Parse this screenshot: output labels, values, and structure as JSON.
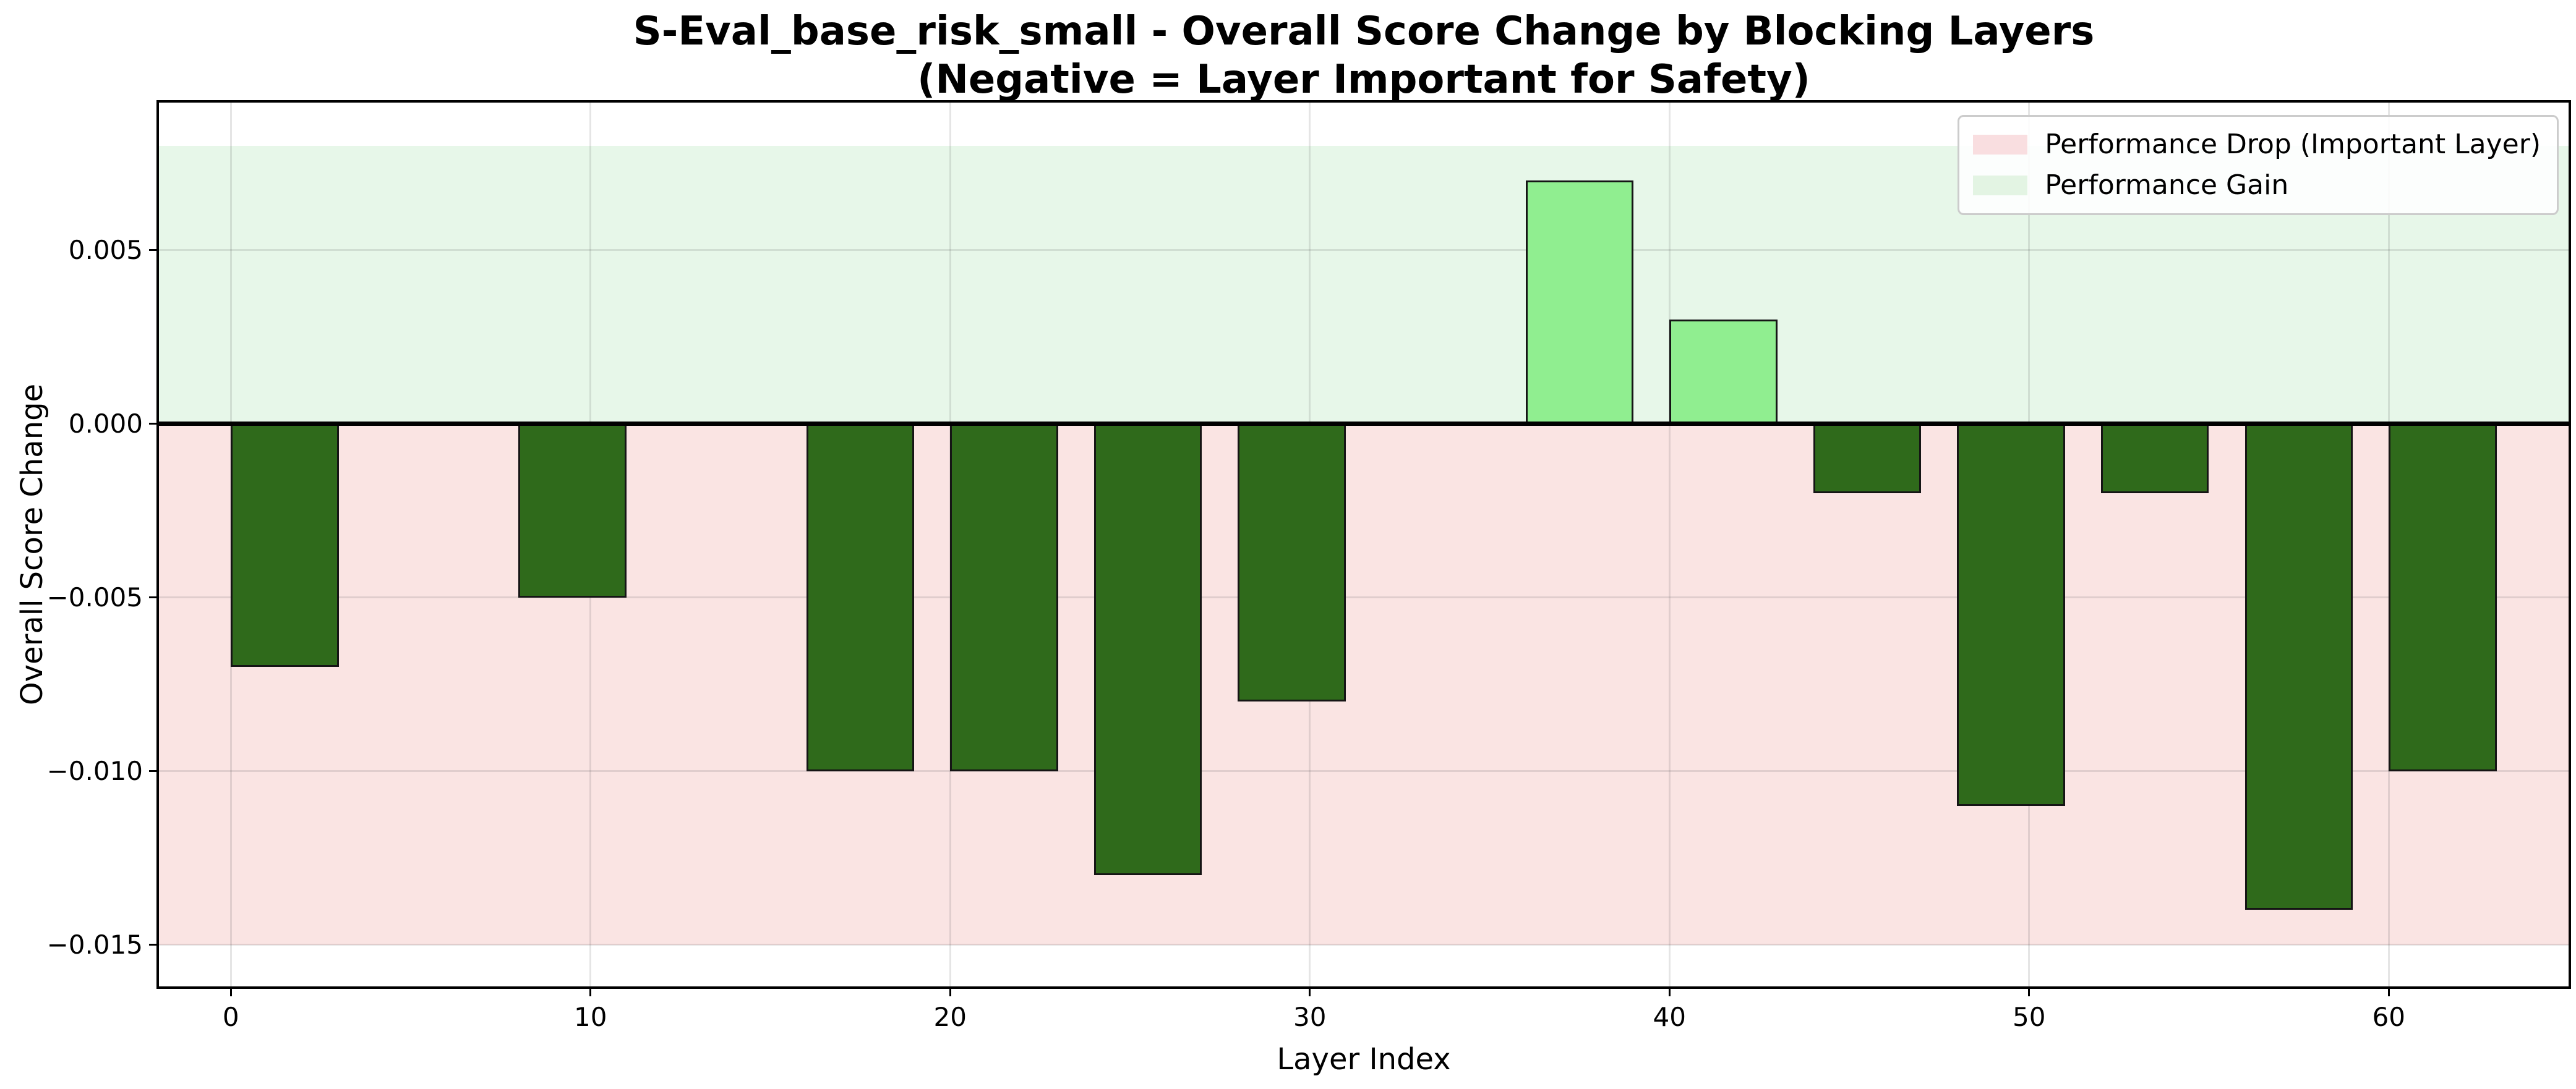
{
  "title": {
    "line1": "S-Eval_base_risk_small - Overall Score Change by Blocking Layers",
    "line2": "(Negative = Layer Important for Safety)"
  },
  "axes": {
    "xlabel": "Layer Index",
    "ylabel": "Overall Score Change"
  },
  "legend": {
    "entries": [
      {
        "label": "Performance Drop (Important Layer)",
        "swatch": "#f9dee0"
      },
      {
        "label": "Performance Gain",
        "swatch": "#e3f4e3"
      }
    ]
  },
  "chart_data": {
    "type": "bar",
    "title": "S-Eval_base_risk_small - Overall Score Change by Blocking Layers",
    "subtitle": "(Negative = Layer Important for Safety)",
    "xlabel": "Layer Index",
    "ylabel": "Overall Score Change",
    "xlim": [
      -2,
      65
    ],
    "ylim": [
      -0.0162,
      0.00925
    ],
    "x_ticks": [
      0,
      10,
      20,
      30,
      40,
      50,
      60
    ],
    "x_tick_labels": [
      "0",
      "10",
      "20",
      "30",
      "40",
      "50",
      "60"
    ],
    "y_ticks": [
      0.005,
      0.0,
      -0.005,
      -0.01,
      -0.015
    ],
    "y_tick_labels": [
      "0.005",
      "0.000",
      "−0.005",
      "−0.010",
      "−0.015"
    ],
    "grid": true,
    "legend_position": "upper right",
    "bar_width_units": 3,
    "categories": [
      "0-3",
      "8-11",
      "16-19",
      "20-23",
      "24-27",
      "28-31",
      "36-39",
      "40-43",
      "44-47",
      "48-51",
      "52-55",
      "56-59",
      "60-63"
    ],
    "values": [
      -0.007,
      -0.005,
      -0.01,
      -0.01,
      -0.013,
      -0.008,
      0.007,
      0.003,
      -0.002,
      -0.011,
      -0.002,
      -0.014,
      -0.01
    ],
    "bars": [
      {
        "x_start": 0,
        "value": -0.007
      },
      {
        "x_start": 8,
        "value": -0.005
      },
      {
        "x_start": 16,
        "value": -0.01
      },
      {
        "x_start": 20,
        "value": -0.01
      },
      {
        "x_start": 24,
        "value": -0.013
      },
      {
        "x_start": 28,
        "value": -0.008
      },
      {
        "x_start": 36,
        "value": 0.007
      },
      {
        "x_start": 40,
        "value": 0.003
      },
      {
        "x_start": 44,
        "value": -0.002
      },
      {
        "x_start": 48,
        "value": -0.011
      },
      {
        "x_start": 52,
        "value": -0.002
      },
      {
        "x_start": 56,
        "value": -0.014
      },
      {
        "x_start": 60,
        "value": -0.01
      }
    ],
    "bands": {
      "positive": {
        "from": 0,
        "to": 0.008,
        "color": "#e7f7e9"
      },
      "negative": {
        "from": -0.015,
        "to": 0,
        "color": "#fae4e3"
      }
    },
    "colors": {
      "negative_bar": "#2f6a1b",
      "positive_bar": "#90ee90",
      "bar_edge": "#151515",
      "grid": "rgba(70,70,70,0.14)",
      "zero_line": "#000000",
      "spine": "#000000"
    }
  }
}
